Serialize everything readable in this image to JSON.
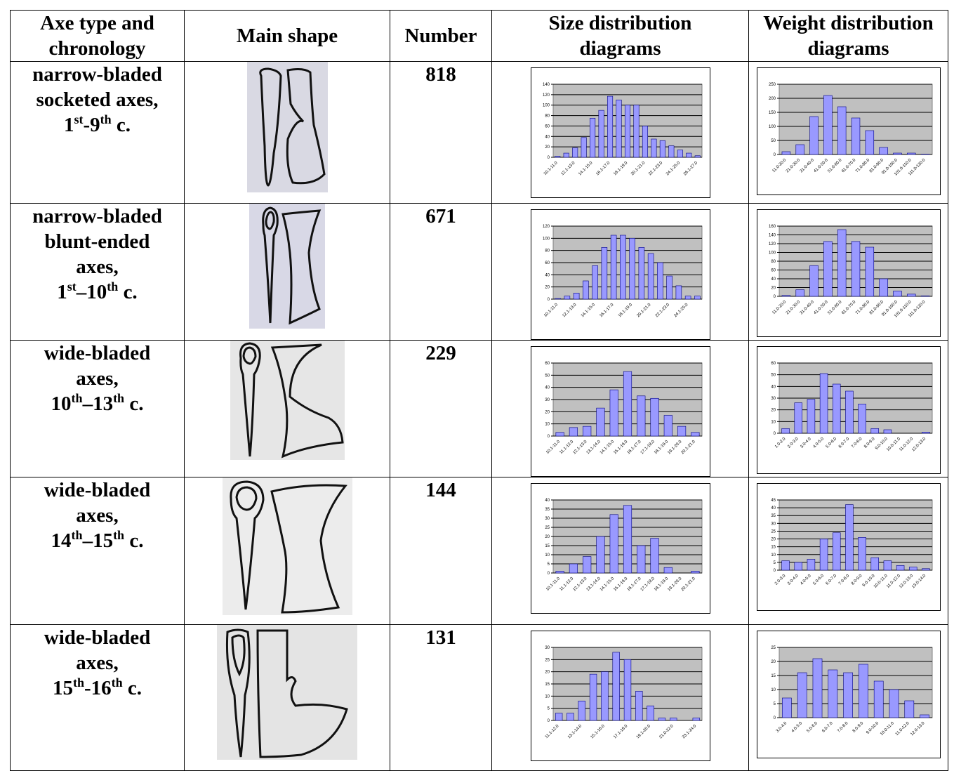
{
  "table": {
    "headers": [
      [
        "Axe type and",
        "chronology"
      ],
      [
        "Main shape"
      ],
      [
        "Number"
      ],
      [
        "Size distribution",
        "diagrams"
      ],
      [
        "Weight distribution",
        "diagrams"
      ]
    ],
    "rows": [
      {
        "type_lines": [
          "narrow-bladed",
          "socketed axes,"
        ],
        "chronology": [
          "1",
          "st",
          "-9",
          "th",
          " c."
        ],
        "number": "818",
        "size_chart": {
          "type": "bar",
          "categories": [
            "10.1-11.0",
            null,
            "12.1-13.0",
            null,
            "14.1-15.0",
            null,
            "16.1-17.0",
            null,
            "18.1-19.0",
            null,
            "20.1-21.0",
            null,
            "22.1-23.0",
            null,
            "24.1-25.0",
            null,
            "26.1-27.0"
          ],
          "values": [
            2,
            8,
            18,
            38,
            75,
            90,
            117,
            110,
            100,
            100,
            60,
            35,
            32,
            22,
            14,
            8,
            3
          ],
          "ylim": [
            0,
            140
          ],
          "yticks": [
            0,
            20,
            40,
            60,
            80,
            100,
            120,
            140
          ]
        },
        "weight_chart": {
          "type": "bar",
          "categories": [
            "11.0-20.0",
            "21.0-30.0",
            "31.0-40.0",
            "41.0-50.0",
            "51.0-60.0",
            "61.0-70.0",
            "71.0-80.0",
            "81.0-90.0",
            "91.0-100.0",
            "101.0-110.0",
            "111.0-120.0"
          ],
          "values": [
            10,
            35,
            135,
            210,
            170,
            130,
            85,
            25,
            5,
            5,
            1
          ],
          "ylim": [
            0,
            250
          ],
          "yticks": [
            0,
            50,
            100,
            150,
            200,
            250
          ]
        }
      },
      {
        "type_lines": [
          "narrow-bladed",
          "blunt-ended",
          "axes,"
        ],
        "chronology": [
          "1",
          "st",
          "–10",
          "th",
          " c."
        ],
        "number": "671",
        "size_chart": {
          "type": "bar",
          "categories": [
            "10.1-11.0",
            null,
            "12.1-13.0",
            null,
            "14.1-15.0",
            null,
            "16.1-17.0",
            null,
            "18.1-19.0",
            null,
            "20.1-21.0",
            null,
            "22.1-23.0",
            null,
            "24.1-25.0",
            null
          ],
          "values": [
            1,
            5,
            10,
            30,
            55,
            85,
            105,
            105,
            100,
            85,
            75,
            60,
            38,
            22,
            5,
            5
          ],
          "ylim": [
            0,
            120
          ],
          "yticks": [
            0,
            20,
            40,
            60,
            80,
            100,
            120
          ]
        },
        "weight_chart": {
          "type": "bar",
          "categories": [
            "11.0-20.0",
            "21.0-30.0",
            "31.0-40.0",
            "41.0-50.0",
            "51.0-60.0",
            "61.0-70.0",
            "71.0-80.0",
            "81.0-90.0",
            "91.0-100.0",
            "101.0-110.0",
            "111.0-120.0"
          ],
          "values": [
            2,
            15,
            70,
            125,
            152,
            125,
            112,
            40,
            12,
            5,
            1
          ],
          "ylim": [
            0,
            160
          ],
          "yticks": [
            0,
            20,
            40,
            60,
            80,
            100,
            120,
            140,
            160
          ]
        }
      },
      {
        "type_lines": [
          "wide-bladed",
          "axes,"
        ],
        "chronology": [
          "10",
          "th",
          "–13",
          "th",
          " c."
        ],
        "number": "229",
        "size_chart": {
          "type": "bar",
          "categories": [
            "10.1-11.0",
            "11.1-12.0",
            "12.1-13.0",
            "13.1-14.0",
            "14.1-15.0",
            "15.1-16.0",
            "16.1-17.0",
            "17.1-18.0",
            "18.1-19.0",
            "19.1-20.0",
            "20.1-21.0"
          ],
          "values": [
            3,
            7,
            8,
            23,
            38,
            53,
            33,
            31,
            17,
            8,
            3
          ],
          "ylim": [
            0,
            60
          ],
          "yticks": [
            0,
            10,
            20,
            30,
            40,
            50,
            60
          ]
        },
        "weight_chart": {
          "type": "bar",
          "categories": [
            "1.0-2.0",
            "2.0-3.0",
            "3.0-4.0",
            "4.0-5.0",
            "5.0-6.0",
            "6.0-7.0",
            "7.0-8.0",
            "8.0-9.0",
            "9.0-10.0",
            "10.0-11.0",
            "11.0-12.0",
            "12.0-13.0"
          ],
          "values": [
            4,
            26,
            29,
            51,
            42,
            36,
            25,
            4,
            3,
            0,
            0,
            1
          ],
          "ylim": [
            0,
            60
          ],
          "yticks": [
            0,
            10,
            20,
            30,
            40,
            50,
            60
          ]
        }
      },
      {
        "type_lines": [
          "wide-bladed",
          "axes,"
        ],
        "chronology": [
          "14",
          "th",
          "–15",
          "th",
          " c."
        ],
        "number": "144",
        "size_chart": {
          "type": "bar",
          "categories": [
            "10.1-11.0",
            "11.1-12.0",
            "12.1-13.0",
            "13.1-14.0",
            "14.1-15.0",
            "15.1-16.0",
            "16.1-17.0",
            "17.1-18.0",
            "18.1-19.0",
            "19.1-20.0",
            "20.1-21.0"
          ],
          "values": [
            1,
            5,
            9,
            20,
            32,
            37,
            15,
            19,
            3,
            0,
            1
          ],
          "ylim": [
            0,
            40
          ],
          "yticks": [
            0,
            5,
            10,
            15,
            20,
            25,
            30,
            35,
            40
          ]
        },
        "weight_chart": {
          "type": "bar",
          "categories": [
            "2.0-3.0",
            "3.0-4.0",
            "4.0-5.0",
            "5.0-6.0",
            "6.0-7.0",
            "7.0-8.0",
            "8.0-9.0",
            "9.0-10.0",
            "10.0-11.0",
            "11.0-12.0",
            "12.0-13.0",
            "13.0-14.0"
          ],
          "values": [
            6,
            5,
            7,
            20,
            24,
            42,
            21,
            8,
            6,
            3,
            2,
            1
          ],
          "ylim": [
            0,
            45
          ],
          "yticks": [
            0,
            5,
            10,
            15,
            20,
            25,
            30,
            35,
            40,
            45
          ]
        }
      },
      {
        "type_lines": [
          "wide-bladed",
          "axes,"
        ],
        "chronology": [
          "15",
          "th",
          "-16",
          "th",
          " c."
        ],
        "number": "131",
        "size_chart": {
          "type": "bar",
          "categories": [
            "11.1-12.0",
            null,
            "13.1-14.0",
            null,
            "15.1-16.0",
            null,
            "17.1-18.0",
            null,
            "19.1-20.0",
            null,
            "21.0-22.0",
            null,
            "23.1-24.0"
          ],
          "values": [
            3,
            3,
            8,
            19,
            20,
            28,
            25,
            12,
            6,
            1,
            1,
            0,
            1
          ],
          "ylim": [
            0,
            30
          ],
          "yticks": [
            0,
            5,
            10,
            15,
            20,
            25,
            30
          ]
        },
        "weight_chart": {
          "type": "bar",
          "categories": [
            "3.0-4.0",
            "4.0-5.0",
            "5.0-6.0",
            "6.0-7.0",
            "7.0-8.0",
            "8.0-9.0",
            "9.0-10.0",
            "10.0-11.0",
            "11.0-12.0",
            "12.0-13.0"
          ],
          "values": [
            7,
            16,
            21,
            17,
            16,
            19,
            13,
            10,
            6,
            1
          ],
          "ylim": [
            0,
            25
          ],
          "yticks": [
            0,
            5,
            10,
            15,
            20,
            25
          ]
        }
      }
    ]
  }
}
